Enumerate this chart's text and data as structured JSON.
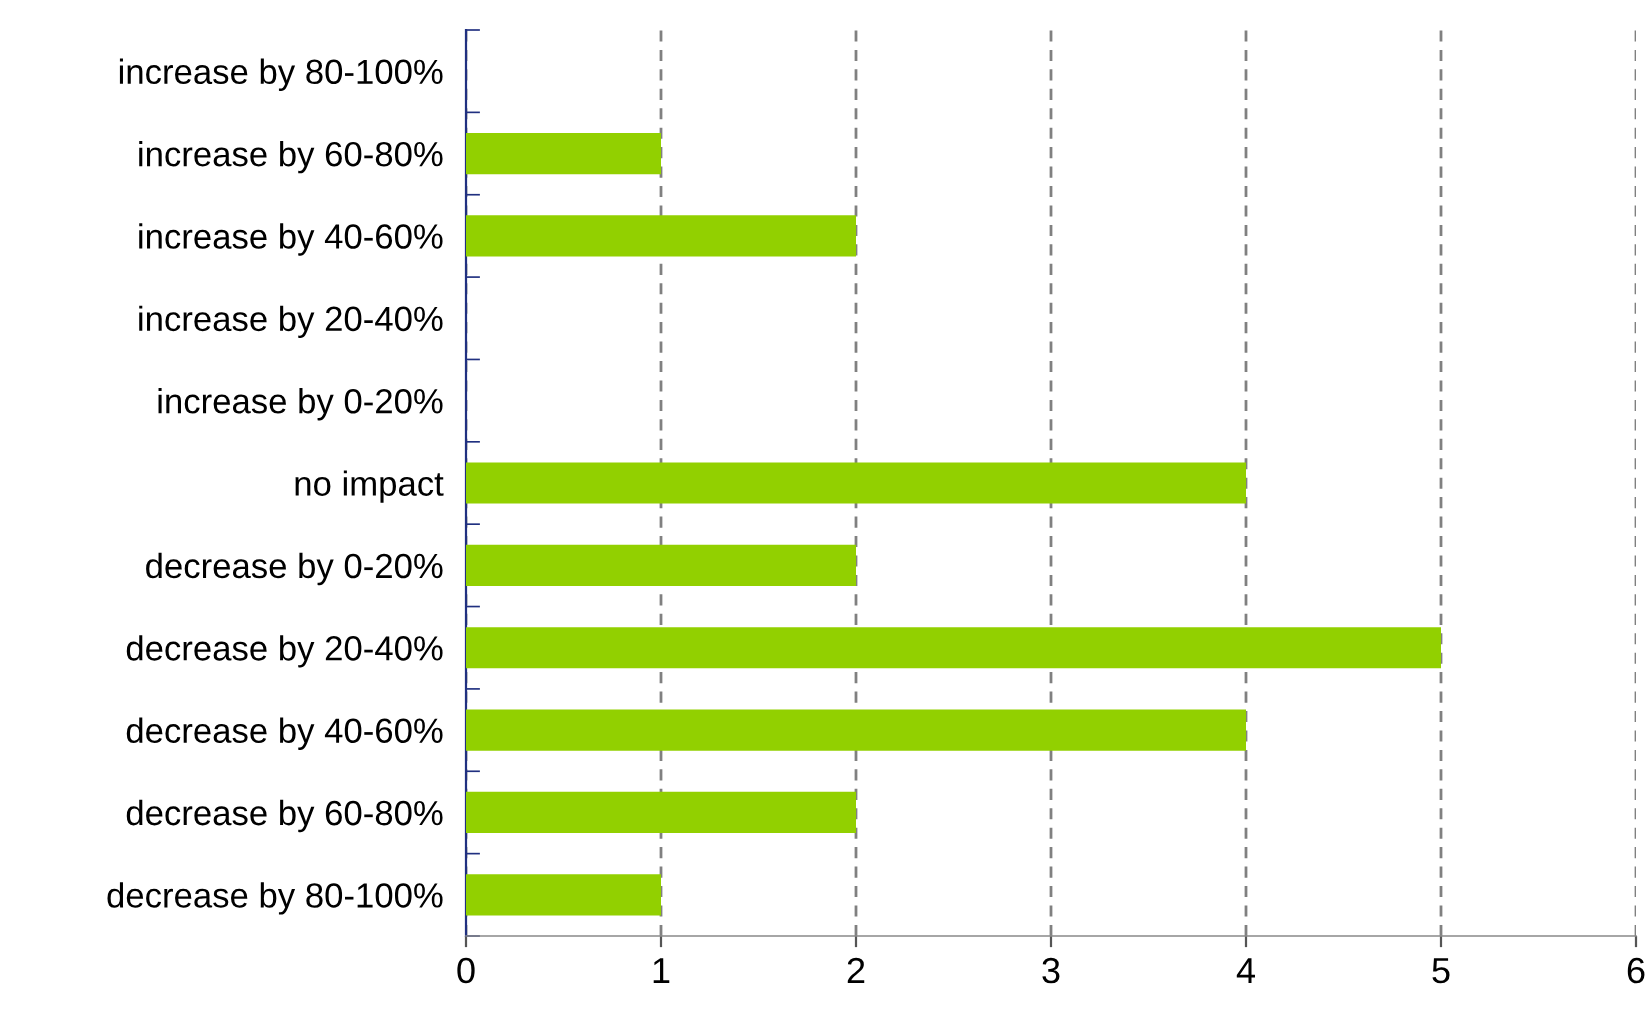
{
  "chart_data": {
    "type": "bar",
    "orientation": "horizontal",
    "categories": [
      "increase by 80-100%",
      "increase by 60-80%",
      "increase by 40-60%",
      "increase by 20-40%",
      "increase by 0-20%",
      "no impact",
      "decrease by 0-20%",
      "decrease by 20-40%",
      "decrease by 40-60%",
      "decrease by 60-80%",
      "decrease by 80-100%"
    ],
    "values": [
      0,
      1,
      2,
      0,
      0,
      4,
      2,
      5,
      4,
      2,
      1
    ],
    "color": "#92d000",
    "xlim": [
      0,
      6
    ],
    "xticks": [
      0,
      1,
      2,
      3,
      4,
      5,
      6
    ],
    "grid": "x"
  }
}
